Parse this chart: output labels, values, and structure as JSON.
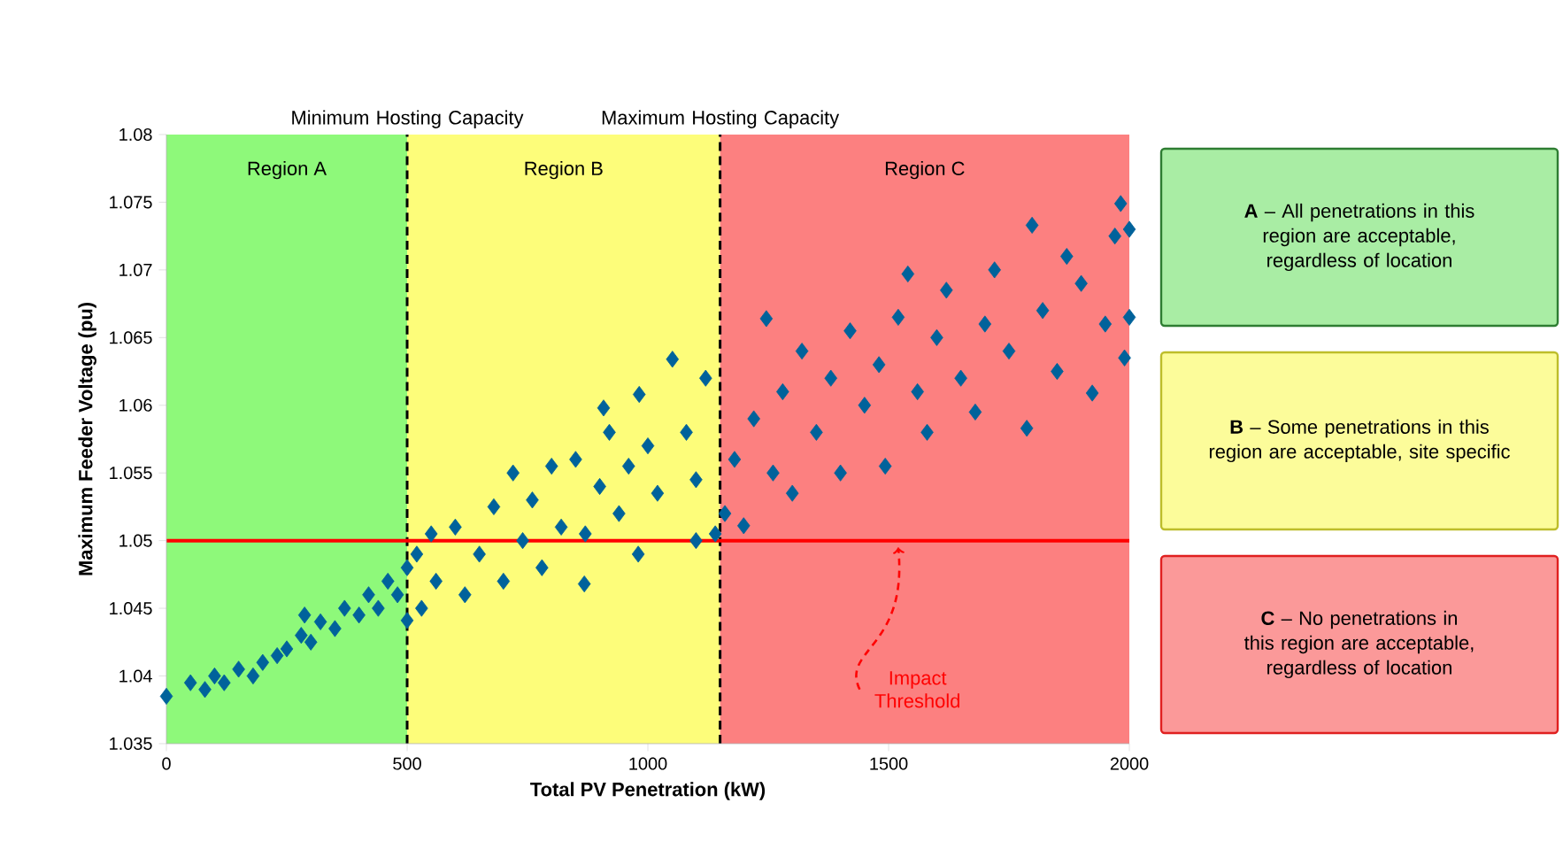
{
  "chart_data": {
    "type": "scatter",
    "xlabel": "Total PV Penetration (kW)",
    "ylabel": "Maximum Feeder Voltage (pu)",
    "xlim": [
      0,
      2000
    ],
    "xticks": [
      0,
      500,
      1000,
      1500,
      2000
    ],
    "ylim": [
      1.035,
      1.08
    ],
    "yticks": [
      1.035,
      1.04,
      1.045,
      1.05,
      1.055,
      1.06,
      1.065,
      1.07,
      1.075,
      1.08
    ],
    "marker": "diamond",
    "series": [
      {
        "color": "#00629b",
        "x": [
          0,
          50,
          80,
          100,
          120,
          150,
          180,
          200,
          230,
          250,
          280,
          287,
          300,
          320,
          350,
          370,
          400,
          420,
          440,
          460,
          480,
          500,
          500,
          520,
          530,
          550,
          560,
          600,
          620,
          650,
          680,
          700,
          720,
          740,
          760,
          780,
          800,
          820,
          850,
          868,
          870,
          900,
          908,
          920,
          940,
          960,
          982,
          980,
          1000,
          1020,
          1051,
          1080,
          1100,
          1100,
          1120,
          1140,
          1160,
          1180,
          1199,
          1220,
          1246,
          1260,
          1280,
          1300,
          1320,
          1350,
          1380,
          1400,
          1420,
          1450,
          1480,
          1493,
          1520,
          1540,
          1560,
          1580,
          1600,
          1620,
          1650,
          1680,
          1700,
          1720,
          1750,
          1787,
          1798,
          1820,
          1850,
          1870,
          1900,
          1923,
          1950,
          1970,
          1982,
          2000,
          2000,
          1990
        ],
        "values": [
          1.0385,
          1.0395,
          1.039,
          1.04,
          1.0395,
          1.0405,
          1.04,
          1.041,
          1.0415,
          1.042,
          1.043,
          1.0445,
          1.0425,
          1.044,
          1.0435,
          1.045,
          1.0445,
          1.046,
          1.045,
          1.047,
          1.046,
          1.048,
          1.0441,
          1.049,
          1.045,
          1.0505,
          1.047,
          1.051,
          1.046,
          1.049,
          1.0525,
          1.047,
          1.055,
          1.05,
          1.053,
          1.048,
          1.0555,
          1.051,
          1.056,
          1.0468,
          1.0505,
          1.054,
          1.0598,
          1.058,
          1.052,
          1.0555,
          1.0608,
          1.049,
          1.057,
          1.0535,
          1.0634,
          1.058,
          1.0545,
          1.05,
          1.062,
          1.0505,
          1.052,
          1.056,
          1.0511,
          1.059,
          1.0664,
          1.055,
          1.061,
          1.0535,
          1.064,
          1.058,
          1.062,
          1.055,
          1.0655,
          1.06,
          1.063,
          1.0555,
          1.0665,
          1.0697,
          1.061,
          1.058,
          1.065,
          1.0685,
          1.062,
          1.0595,
          1.066,
          1.07,
          1.064,
          1.0583,
          1.0733,
          1.067,
          1.0625,
          1.071,
          1.069,
          1.0609,
          1.066,
          1.0725,
          1.0749,
          1.073,
          1.0665,
          1.0635
        ]
      }
    ],
    "bands": [
      {
        "axis": "x",
        "from": 0,
        "to": 500,
        "label": "Region A",
        "color": "#8ef97a"
      },
      {
        "axis": "x",
        "from": 500,
        "to": 1150,
        "label": "Region B",
        "color": "#fdfd7a"
      },
      {
        "axis": "x",
        "from": 1150,
        "to": 2000,
        "label": "Region C",
        "color": "#fc8080"
      }
    ],
    "ref_lines": [
      {
        "axis": "x",
        "value": 500,
        "label": "Minimum Hosting Capacity",
        "color": "#000000",
        "line_style": "dashed"
      },
      {
        "axis": "x",
        "value": 1150,
        "label": "Maximum Hosting Capacity",
        "color": "#000000",
        "line_style": "dashed"
      },
      {
        "axis": "y",
        "value": 1.05,
        "label": "Impact Threshold",
        "color": "#ff0000",
        "line_style": "solid"
      }
    ],
    "annotations": [
      "**A** – All penetrations in this region are acceptable, regardless of location",
      "**B** – Some penetrations in this region are acceptable, site specific",
      "**C** – No penetrations in this region are acceptable, regardless of location"
    ]
  }
}
